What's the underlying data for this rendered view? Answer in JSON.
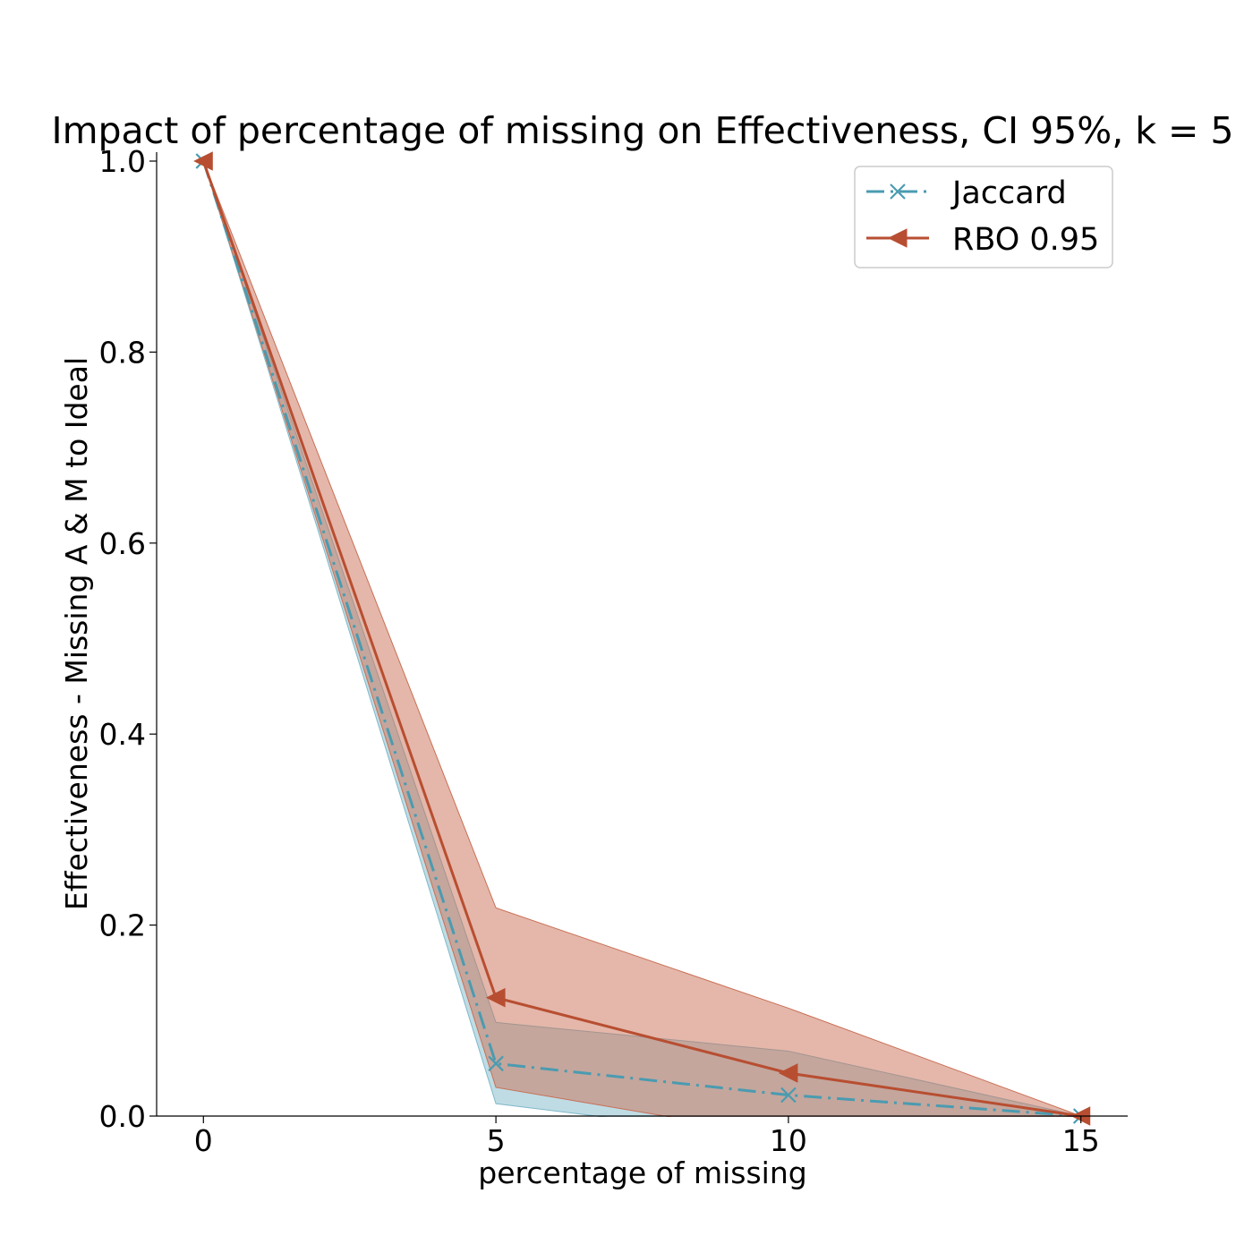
{
  "chart_data": {
    "type": "line",
    "title": "Impact of percentage of missing on Effectiveness, CI 95%, k = 5",
    "xlabel": "percentage of missing",
    "ylabel": "Effectiveness - Missing A & M to Ideal",
    "x": [
      0,
      5,
      10,
      15
    ],
    "xticks": [
      0,
      5,
      10,
      15
    ],
    "xtick_labels": [
      "0",
      "5",
      "10",
      "15"
    ],
    "yticks": [
      0.0,
      0.2,
      0.4,
      0.6,
      0.8,
      1.0
    ],
    "ytick_labels": [
      "0.0",
      "0.2",
      "0.4",
      "0.6",
      "0.8",
      "1.0"
    ],
    "xlim": [
      -0.8,
      15.8
    ],
    "ylim": [
      0.0,
      1.0
    ],
    "legend_position": "top-right",
    "grid": false,
    "series": [
      {
        "name": "Jaccard",
        "values": [
          1.0,
          0.055,
          0.022,
          0.0
        ],
        "ci_lower": [
          1.0,
          0.013,
          -0.025,
          0.0
        ],
        "ci_upper": [
          1.0,
          0.098,
          0.068,
          0.0
        ],
        "color": "#4a9bb0",
        "fill_color": "#7fb9ca",
        "line_style": "dash-dot",
        "marker": "x"
      },
      {
        "name": "RBO 0.95",
        "values": [
          1.0,
          0.124,
          0.045,
          0.0
        ],
        "ci_lower": [
          1.0,
          0.03,
          -0.022,
          0.0
        ],
        "ci_upper": [
          1.0,
          0.218,
          0.113,
          0.0
        ],
        "color": "#b84e31",
        "fill_color": "#c96f55",
        "line_style": "solid",
        "marker": "triangle-left"
      }
    ]
  }
}
